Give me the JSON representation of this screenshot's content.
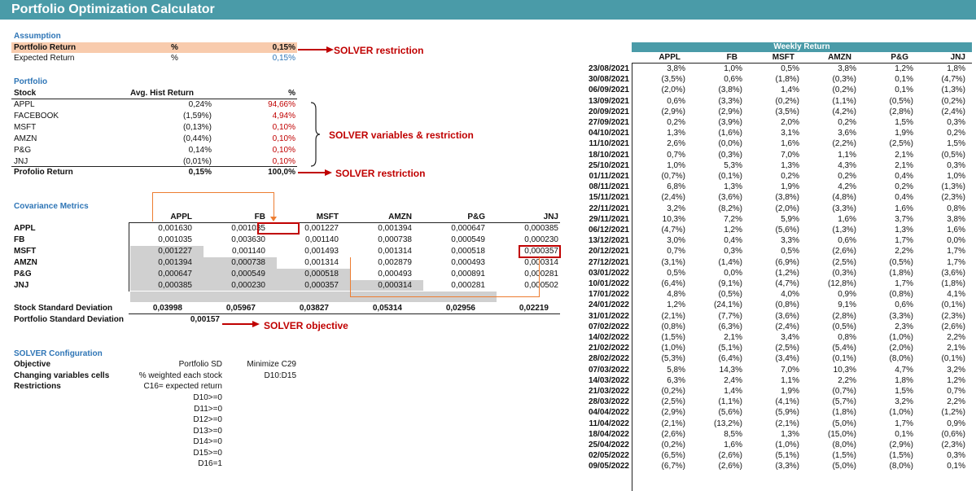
{
  "title": "Portfolio Optimization Calculator",
  "assumption": {
    "heading": "Assumption",
    "rows": [
      {
        "label": "Portfolio Return",
        "unit": "%",
        "value": "0,15%"
      },
      {
        "label": "Expected Return",
        "unit": "%",
        "value": "0,15%"
      }
    ]
  },
  "portfolio": {
    "heading": "Portfolio",
    "col_stock": "Stock",
    "col_avg": "Avg. Hist Return",
    "col_pct": "%",
    "rows": [
      {
        "stock": "APPL",
        "avg": "0,24%",
        "pct": "94,66%"
      },
      {
        "stock": "FACEBOOK",
        "avg": "(1,59%)",
        "pct": "4,94%"
      },
      {
        "stock": "MSFT",
        "avg": "(0,13%)",
        "pct": "0,10%"
      },
      {
        "stock": "AMZN",
        "avg": "(0,44%)",
        "pct": "0,10%"
      },
      {
        "stock": "P&G",
        "avg": "0,14%",
        "pct": "0,10%"
      },
      {
        "stock": "JNJ",
        "avg": "(0,01%)",
        "pct": "0,10%"
      }
    ],
    "total_label": "Profolio Return",
    "total_avg": "0,15%",
    "total_pct": "100,0%"
  },
  "annotations": {
    "restriction1": "SOLVER restriction",
    "variables": "SOLVER variables & restriction",
    "restriction2": "SOLVER restriction",
    "objective": "SOLVER objective"
  },
  "covariance": {
    "heading": "Covariance Metrics",
    "headers": [
      "APPL",
      "FB",
      "MSFT",
      "AMZN",
      "P&G",
      "JNJ"
    ],
    "rows": [
      {
        "label": "APPL",
        "values": [
          "0,001630",
          "0,001035",
          "0,001227",
          "0,001394",
          "0,000647",
          "0,000385"
        ]
      },
      {
        "label": "FB",
        "values": [
          "0,001035",
          "0,003630",
          "0,001140",
          "0,000738",
          "0,000549",
          "0,000230"
        ]
      },
      {
        "label": "MSFT",
        "values": [
          "0,001227",
          "0,001140",
          "0,001493",
          "0,001314",
          "0,000518",
          "0,000357"
        ]
      },
      {
        "label": "AMZN",
        "values": [
          "0,001394",
          "0,000738",
          "0,001314",
          "0,002879",
          "0,000493",
          "0,000314"
        ]
      },
      {
        "label": "P&G",
        "values": [
          "0,000647",
          "0,000549",
          "0,000518",
          "0,000493",
          "0,000891",
          "0,000281"
        ]
      },
      {
        "label": "JNJ",
        "values": [
          "0,000385",
          "0,000230",
          "0,000357",
          "0,000314",
          "0,000281",
          "0,000502"
        ]
      }
    ],
    "std_label": "Stock Standard Deviation",
    "std_values": [
      "0,03998",
      "0,05967",
      "0,03827",
      "0,05314",
      "0,02956",
      "0,02219"
    ],
    "port_std_label": "Portfolio Standard Deviation",
    "port_std_value": "0,00157"
  },
  "solver": {
    "heading": "SOLVER Configuration",
    "rows": [
      {
        "label": "Objective",
        "col1": "Portfolio SD",
        "col2": "Minimize C29"
      },
      {
        "label": "Changing variables cells",
        "col1": "% weighted each stock",
        "col2": "D10:D15"
      },
      {
        "label": "Restrictions",
        "col1": "C16= expected return",
        "col2": ""
      }
    ],
    "restrictions": [
      "D10>=0",
      "D11>=0",
      "D12>=0",
      "D13>=0",
      "D14>=0",
      "D15>=0",
      "D16=1"
    ]
  },
  "weekly": {
    "heading": "Weekly Return",
    "headers": [
      "APPL",
      "FB",
      "MSFT",
      "AMZN",
      "P&G",
      "JNJ"
    ],
    "rows": [
      {
        "date": "23/08/2021",
        "v": [
          "3,8%",
          "1,0%",
          "0,5%",
          "3,8%",
          "1,2%",
          "1,8%"
        ]
      },
      {
        "date": "30/08/2021",
        "v": [
          "(3,5%)",
          "0,6%",
          "(1,8%)",
          "(0,3%)",
          "0,1%",
          "(4,7%)"
        ]
      },
      {
        "date": "06/09/2021",
        "v": [
          "(2,0%)",
          "(3,8%)",
          "1,4%",
          "(0,2%)",
          "0,1%",
          "(1,3%)"
        ]
      },
      {
        "date": "13/09/2021",
        "v": [
          "0,6%",
          "(3,3%)",
          "(0,2%)",
          "(1,1%)",
          "(0,5%)",
          "(0,2%)"
        ]
      },
      {
        "date": "20/09/2021",
        "v": [
          "(2,9%)",
          "(2,9%)",
          "(3,5%)",
          "(4,2%)",
          "(2,8%)",
          "(2,4%)"
        ]
      },
      {
        "date": "27/09/2021",
        "v": [
          "0,2%",
          "(3,9%)",
          "2,0%",
          "0,2%",
          "1,5%",
          "0,3%"
        ]
      },
      {
        "date": "04/10/2021",
        "v": [
          "1,3%",
          "(1,6%)",
          "3,1%",
          "3,6%",
          "1,9%",
          "0,2%"
        ]
      },
      {
        "date": "11/10/2021",
        "v": [
          "2,6%",
          "(0,0%)",
          "1,6%",
          "(2,2%)",
          "(2,5%)",
          "1,5%"
        ]
      },
      {
        "date": "18/10/2021",
        "v": [
          "0,7%",
          "(0,3%)",
          "7,0%",
          "1,1%",
          "2,1%",
          "(0,5%)"
        ]
      },
      {
        "date": "25/10/2021",
        "v": [
          "1,0%",
          "5,3%",
          "1,3%",
          "4,3%",
          "2,1%",
          "0,3%"
        ]
      },
      {
        "date": "01/11/2021",
        "v": [
          "(0,7%)",
          "(0,1%)",
          "0,2%",
          "0,2%",
          "0,4%",
          "1,0%"
        ]
      },
      {
        "date": "08/11/2021",
        "v": [
          "6,8%",
          "1,3%",
          "1,9%",
          "4,2%",
          "0,2%",
          "(1,3%)"
        ]
      },
      {
        "date": "15/11/2021",
        "v": [
          "(2,4%)",
          "(3,6%)",
          "(3,8%)",
          "(4,8%)",
          "0,4%",
          "(2,3%)"
        ]
      },
      {
        "date": "22/11/2021",
        "v": [
          "3,2%",
          "(8,2%)",
          "(2,0%)",
          "(3,3%)",
          "1,6%",
          "0,8%"
        ]
      },
      {
        "date": "29/11/2021",
        "v": [
          "10,3%",
          "7,2%",
          "5,9%",
          "1,6%",
          "3,7%",
          "3,8%"
        ]
      },
      {
        "date": "06/12/2021",
        "v": [
          "(4,7%)",
          "1,2%",
          "(5,6%)",
          "(1,3%)",
          "1,3%",
          "1,6%"
        ]
      },
      {
        "date": "13/12/2021",
        "v": [
          "3,0%",
          "0,4%",
          "3,3%",
          "0,6%",
          "1,7%",
          "0,0%"
        ]
      },
      {
        "date": "20/12/2021",
        "v": [
          "0,7%",
          "0,3%",
          "0,5%",
          "(2,6%)",
          "2,2%",
          "1,7%"
        ]
      },
      {
        "date": "27/12/2021",
        "v": [
          "(3,1%)",
          "(1,4%)",
          "(6,9%)",
          "(2,5%)",
          "(0,5%)",
          "1,7%"
        ]
      },
      {
        "date": "03/01/2022",
        "v": [
          "0,5%",
          "0,0%",
          "(1,2%)",
          "(0,3%)",
          "(1,8%)",
          "(3,6%)"
        ]
      },
      {
        "date": "10/01/2022",
        "v": [
          "(6,4%)",
          "(9,1%)",
          "(4,7%)",
          "(12,8%)",
          "1,7%",
          "(1,8%)"
        ]
      },
      {
        "date": "17/01/2022",
        "v": [
          "4,8%",
          "(0,5%)",
          "4,0%",
          "0,9%",
          "(0,8%)",
          "4,1%"
        ]
      },
      {
        "date": "24/01/2022",
        "v": [
          "1,2%",
          "(24,1%)",
          "(0,8%)",
          "9,1%",
          "0,6%",
          "(0,1%)"
        ]
      },
      {
        "date": "31/01/2022",
        "v": [
          "(2,1%)",
          "(7,7%)",
          "(3,6%)",
          "(2,8%)",
          "(3,3%)",
          "(2,3%)"
        ]
      },
      {
        "date": "07/02/2022",
        "v": [
          "(0,8%)",
          "(6,3%)",
          "(2,4%)",
          "(0,5%)",
          "2,3%",
          "(2,6%)"
        ]
      },
      {
        "date": "14/02/2022",
        "v": [
          "(1,5%)",
          "2,1%",
          "3,4%",
          "0,8%",
          "(1,0%)",
          "2,2%"
        ]
      },
      {
        "date": "21/02/2022",
        "v": [
          "(1,0%)",
          "(5,1%)",
          "(2,5%)",
          "(5,4%)",
          "(2,0%)",
          "2,1%"
        ]
      },
      {
        "date": "28/02/2022",
        "v": [
          "(5,3%)",
          "(6,4%)",
          "(3,4%)",
          "(0,1%)",
          "(8,0%)",
          "(0,1%)"
        ]
      },
      {
        "date": "07/03/2022",
        "v": [
          "5,8%",
          "14,3%",
          "7,0%",
          "10,3%",
          "4,7%",
          "3,2%"
        ]
      },
      {
        "date": "14/03/2022",
        "v": [
          "6,3%",
          "2,4%",
          "1,1%",
          "2,2%",
          "1,8%",
          "1,2%"
        ]
      },
      {
        "date": "21/03/2022",
        "v": [
          "(0,2%)",
          "1,4%",
          "1,9%",
          "(0,7%)",
          "1,5%",
          "0,7%"
        ]
      },
      {
        "date": "28/03/2022",
        "v": [
          "(2,5%)",
          "(1,1%)",
          "(4,1%)",
          "(5,7%)",
          "3,2%",
          "2,2%"
        ]
      },
      {
        "date": "04/04/2022",
        "v": [
          "(2,9%)",
          "(5,6%)",
          "(5,9%)",
          "(1,8%)",
          "(1,0%)",
          "(1,2%)"
        ]
      },
      {
        "date": "11/04/2022",
        "v": [
          "(2,1%)",
          "(13,2%)",
          "(2,1%)",
          "(5,0%)",
          "1,7%",
          "0,9%"
        ]
      },
      {
        "date": "18/04/2022",
        "v": [
          "(2,6%)",
          "8,5%",
          "1,3%",
          "(15,0%)",
          "0,1%",
          "(0,6%)"
        ]
      },
      {
        "date": "25/04/2022",
        "v": [
          "(0,2%)",
          "1,6%",
          "(1,0%)",
          "(8,0%)",
          "(2,9%)",
          "(2,3%)"
        ]
      },
      {
        "date": "02/05/2022",
        "v": [
          "(6,5%)",
          "(2,6%)",
          "(5,1%)",
          "(1,5%)",
          "(1,5%)",
          "0,3%"
        ]
      },
      {
        "date": "09/05/2022",
        "v": [
          "(6,7%)",
          "(2,6%)",
          "(3,3%)",
          "(5,0%)",
          "(8,0%)",
          "0,1%"
        ]
      }
    ]
  }
}
